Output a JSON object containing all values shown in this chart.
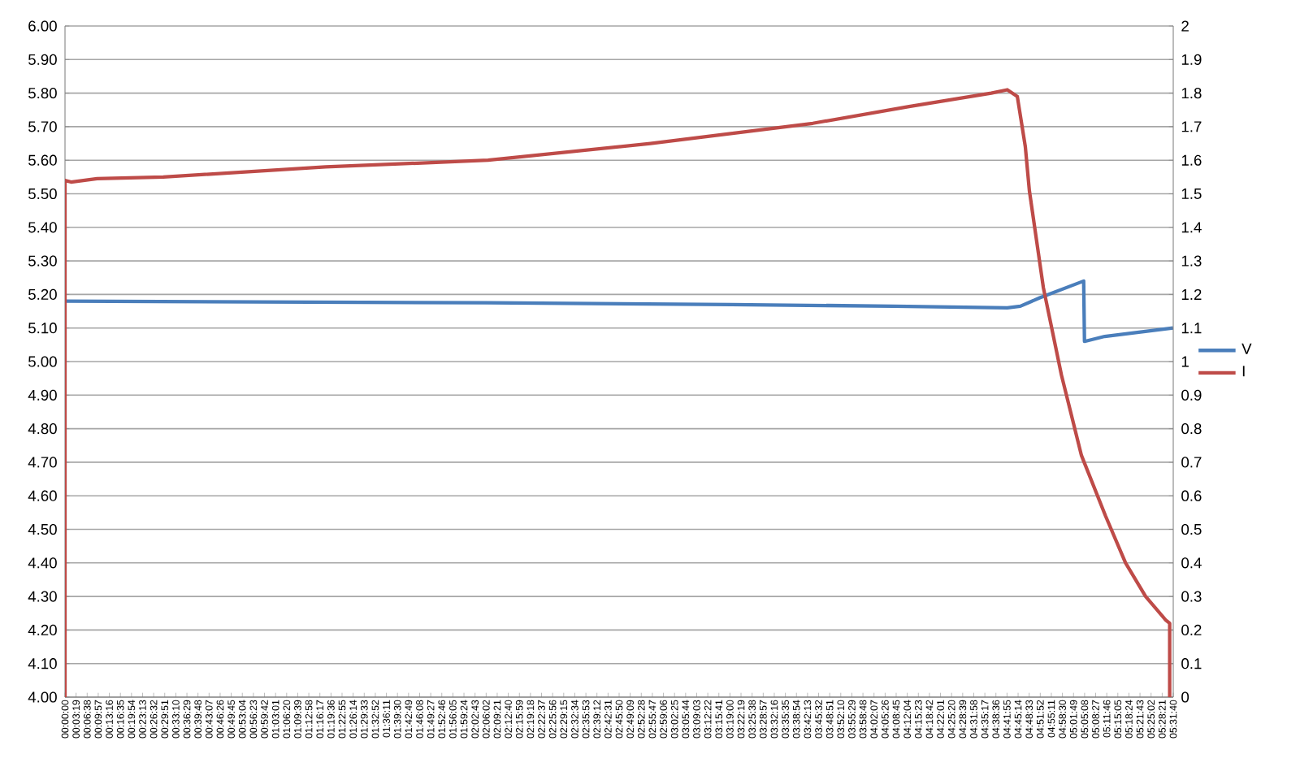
{
  "chart_data": {
    "type": "line",
    "series": [
      {
        "name": "V",
        "color": "#4a7ebb",
        "axis": "y",
        "x": [
          0,
          2.107,
          3.323,
          4.133,
          4.7,
          4.765,
          4.862,
          5.081,
          5.085,
          5.186,
          5.527
        ],
        "values": [
          5.18,
          5.175,
          5.17,
          5.165,
          5.16,
          5.165,
          5.19,
          5.24,
          5.06,
          5.075,
          5.1
        ]
      },
      {
        "name": "I",
        "color": "#be4b48",
        "axis": "y2",
        "x": [
          0,
          0,
          0.03,
          0.16,
          0.49,
          1.3,
          2.11,
          2.92,
          3.73,
          4.21,
          4.62,
          4.7,
          4.75,
          4.79,
          4.81,
          4.88,
          4.97,
          5.07,
          5.19,
          5.29,
          5.39,
          5.49,
          5.51,
          5.51
        ],
        "values": [
          0,
          1.54,
          1.535,
          1.545,
          1.55,
          1.58,
          1.6,
          1.65,
          1.71,
          1.76,
          1.8,
          1.81,
          1.79,
          1.64,
          1.51,
          1.22,
          0.96,
          0.72,
          0.54,
          0.4,
          0.3,
          0.23,
          0.22,
          0
        ]
      }
    ],
    "xlim": [
      0,
      5.5278
    ],
    "xticks": [
      {
        "value": 0,
        "label": "00:00:00"
      },
      {
        "value": 0.0553,
        "label": "00:03:19"
      },
      {
        "value": 0.1106,
        "label": "00:06:38"
      },
      {
        "value": 0.1658,
        "label": "00:09:57"
      },
      {
        "value": 0.2211,
        "label": "00:13:16"
      },
      {
        "value": 0.2764,
        "label": "00:16:35"
      },
      {
        "value": 0.3317,
        "label": "00:19:54"
      },
      {
        "value": 0.3869,
        "label": "00:23:13"
      },
      {
        "value": 0.4422,
        "label": "00:26:32"
      },
      {
        "value": 0.4975,
        "label": "00:29:51"
      },
      {
        "value": 0.5528,
        "label": "00:33:10"
      },
      {
        "value": 0.6081,
        "label": "00:36:29"
      },
      {
        "value": 0.6633,
        "label": "00:39:48"
      },
      {
        "value": 0.7186,
        "label": "00:43:07"
      },
      {
        "value": 0.7739,
        "label": "00:46:26"
      },
      {
        "value": 0.8292,
        "label": "00:49:45"
      },
      {
        "value": 0.8844,
        "label": "00:53:04"
      },
      {
        "value": 0.9397,
        "label": "00:56:23"
      },
      {
        "value": 0.995,
        "label": "00:59:42"
      },
      {
        "value": 1.0503,
        "label": "01:03:01"
      },
      {
        "value": 1.1056,
        "label": "01:06:20"
      },
      {
        "value": 1.1608,
        "label": "01:09:39"
      },
      {
        "value": 1.2161,
        "label": "01:12:58"
      },
      {
        "value": 1.2714,
        "label": "01:16:17"
      },
      {
        "value": 1.3267,
        "label": "01:19:36"
      },
      {
        "value": 1.3819,
        "label": "01:22:55"
      },
      {
        "value": 1.4372,
        "label": "01:26:14"
      },
      {
        "value": 1.4925,
        "label": "01:29:33"
      },
      {
        "value": 1.5478,
        "label": "01:32:52"
      },
      {
        "value": 1.6031,
        "label": "01:36:11"
      },
      {
        "value": 1.6583,
        "label": "01:39:30"
      },
      {
        "value": 1.7136,
        "label": "01:42:49"
      },
      {
        "value": 1.7689,
        "label": "01:46:08"
      },
      {
        "value": 1.8242,
        "label": "01:49:27"
      },
      {
        "value": 1.8794,
        "label": "01:52:46"
      },
      {
        "value": 1.9347,
        "label": "01:56:05"
      },
      {
        "value": 1.99,
        "label": "01:59:24"
      },
      {
        "value": 2.0453,
        "label": "02:02:43"
      },
      {
        "value": 2.1006,
        "label": "02:06:02"
      },
      {
        "value": 2.1558,
        "label": "02:09:21"
      },
      {
        "value": 2.2111,
        "label": "02:12:40"
      },
      {
        "value": 2.2664,
        "label": "02:15:59"
      },
      {
        "value": 2.3217,
        "label": "02:19:18"
      },
      {
        "value": 2.3769,
        "label": "02:22:37"
      },
      {
        "value": 2.4322,
        "label": "02:25:56"
      },
      {
        "value": 2.4875,
        "label": "02:29:15"
      },
      {
        "value": 2.5428,
        "label": "02:32:34"
      },
      {
        "value": 2.5981,
        "label": "02:35:53"
      },
      {
        "value": 2.6533,
        "label": "02:39:12"
      },
      {
        "value": 2.7086,
        "label": "02:42:31"
      },
      {
        "value": 2.7639,
        "label": "02:45:50"
      },
      {
        "value": 2.8192,
        "label": "02:49:09"
      },
      {
        "value": 2.8744,
        "label": "02:52:28"
      },
      {
        "value": 2.9297,
        "label": "02:55:47"
      },
      {
        "value": 2.985,
        "label": "02:59:06"
      },
      {
        "value": 3.0403,
        "label": "03:02:25"
      },
      {
        "value": 3.0956,
        "label": "03:05:44"
      },
      {
        "value": 3.1508,
        "label": "03:09:03"
      },
      {
        "value": 3.2061,
        "label": "03:12:22"
      },
      {
        "value": 3.2614,
        "label": "03:15:41"
      },
      {
        "value": 3.3167,
        "label": "03:19:00"
      },
      {
        "value": 3.3719,
        "label": "03:22:19"
      },
      {
        "value": 3.4272,
        "label": "03:25:38"
      },
      {
        "value": 3.4825,
        "label": "03:28:57"
      },
      {
        "value": 3.5378,
        "label": "03:32:16"
      },
      {
        "value": 3.5931,
        "label": "03:35:35"
      },
      {
        "value": 3.6483,
        "label": "03:38:54"
      },
      {
        "value": 3.7036,
        "label": "03:42:13"
      },
      {
        "value": 3.7589,
        "label": "03:45:32"
      },
      {
        "value": 3.8142,
        "label": "03:48:51"
      },
      {
        "value": 3.8694,
        "label": "03:52:10"
      },
      {
        "value": 3.9247,
        "label": "03:55:29"
      },
      {
        "value": 3.98,
        "label": "03:58:48"
      },
      {
        "value": 4.0353,
        "label": "04:02:07"
      },
      {
        "value": 4.0906,
        "label": "04:05:26"
      },
      {
        "value": 4.1458,
        "label": "04:08:45"
      },
      {
        "value": 4.2011,
        "label": "04:12:04"
      },
      {
        "value": 4.2564,
        "label": "04:15:23"
      },
      {
        "value": 4.3117,
        "label": "04:18:42"
      },
      {
        "value": 4.3669,
        "label": "04:22:01"
      },
      {
        "value": 4.4222,
        "label": "04:25:20"
      },
      {
        "value": 4.4775,
        "label": "04:28:39"
      },
      {
        "value": 4.5328,
        "label": "04:31:58"
      },
      {
        "value": 4.5881,
        "label": "04:35:17"
      },
      {
        "value": 4.6433,
        "label": "04:38:36"
      },
      {
        "value": 4.6986,
        "label": "04:41:55"
      },
      {
        "value": 4.7539,
        "label": "04:45:14"
      },
      {
        "value": 4.8092,
        "label": "04:48:33"
      },
      {
        "value": 4.8644,
        "label": "04:51:52"
      },
      {
        "value": 4.9197,
        "label": "04:55:11"
      },
      {
        "value": 4.975,
        "label": "04:58:30"
      },
      {
        "value": 5.0303,
        "label": "05:01:49"
      },
      {
        "value": 5.0856,
        "label": "05:05:08"
      },
      {
        "value": 5.1408,
        "label": "05:08:27"
      },
      {
        "value": 5.1961,
        "label": "05:11:46"
      },
      {
        "value": 5.2514,
        "label": "05:15:05"
      },
      {
        "value": 5.3067,
        "label": "05:18:24"
      },
      {
        "value": 5.3619,
        "label": "05:21:43"
      },
      {
        "value": 5.4172,
        "label": "05:25:02"
      },
      {
        "value": 5.4725,
        "label": "05:28:21"
      },
      {
        "value": 5.5278,
        "label": "05:31:40"
      }
    ],
    "ylim": [
      4,
      6
    ],
    "yticks": [
      {
        "value": 4,
        "label": "4.00"
      },
      {
        "value": 4.1,
        "label": "4.10"
      },
      {
        "value": 4.2,
        "label": "4.20"
      },
      {
        "value": 4.3,
        "label": "4.30"
      },
      {
        "value": 4.4,
        "label": "4.40"
      },
      {
        "value": 4.5,
        "label": "4.50"
      },
      {
        "value": 4.6,
        "label": "4.60"
      },
      {
        "value": 4.7,
        "label": "4.70"
      },
      {
        "value": 4.8,
        "label": "4.80"
      },
      {
        "value": 4.9,
        "label": "4.90"
      },
      {
        "value": 5,
        "label": "5.00"
      },
      {
        "value": 5.1,
        "label": "5.10"
      },
      {
        "value": 5.2,
        "label": "5.20"
      },
      {
        "value": 5.3,
        "label": "5.30"
      },
      {
        "value": 5.4,
        "label": "5.40"
      },
      {
        "value": 5.5,
        "label": "5.50"
      },
      {
        "value": 5.6,
        "label": "5.60"
      },
      {
        "value": 5.7,
        "label": "5.70"
      },
      {
        "value": 5.8,
        "label": "5.80"
      },
      {
        "value": 5.9,
        "label": "5.90"
      },
      {
        "value": 6,
        "label": "6.00"
      }
    ],
    "y2lim": [
      0,
      2
    ],
    "y2ticks": [
      0,
      0.1,
      0.2,
      0.3,
      0.4,
      0.5,
      0.6,
      0.7,
      0.8,
      0.9,
      1,
      1.1,
      1.2,
      1.3,
      1.4,
      1.5,
      1.6,
      1.7,
      1.8,
      1.9,
      2
    ],
    "grid": "y",
    "legend": "right"
  }
}
